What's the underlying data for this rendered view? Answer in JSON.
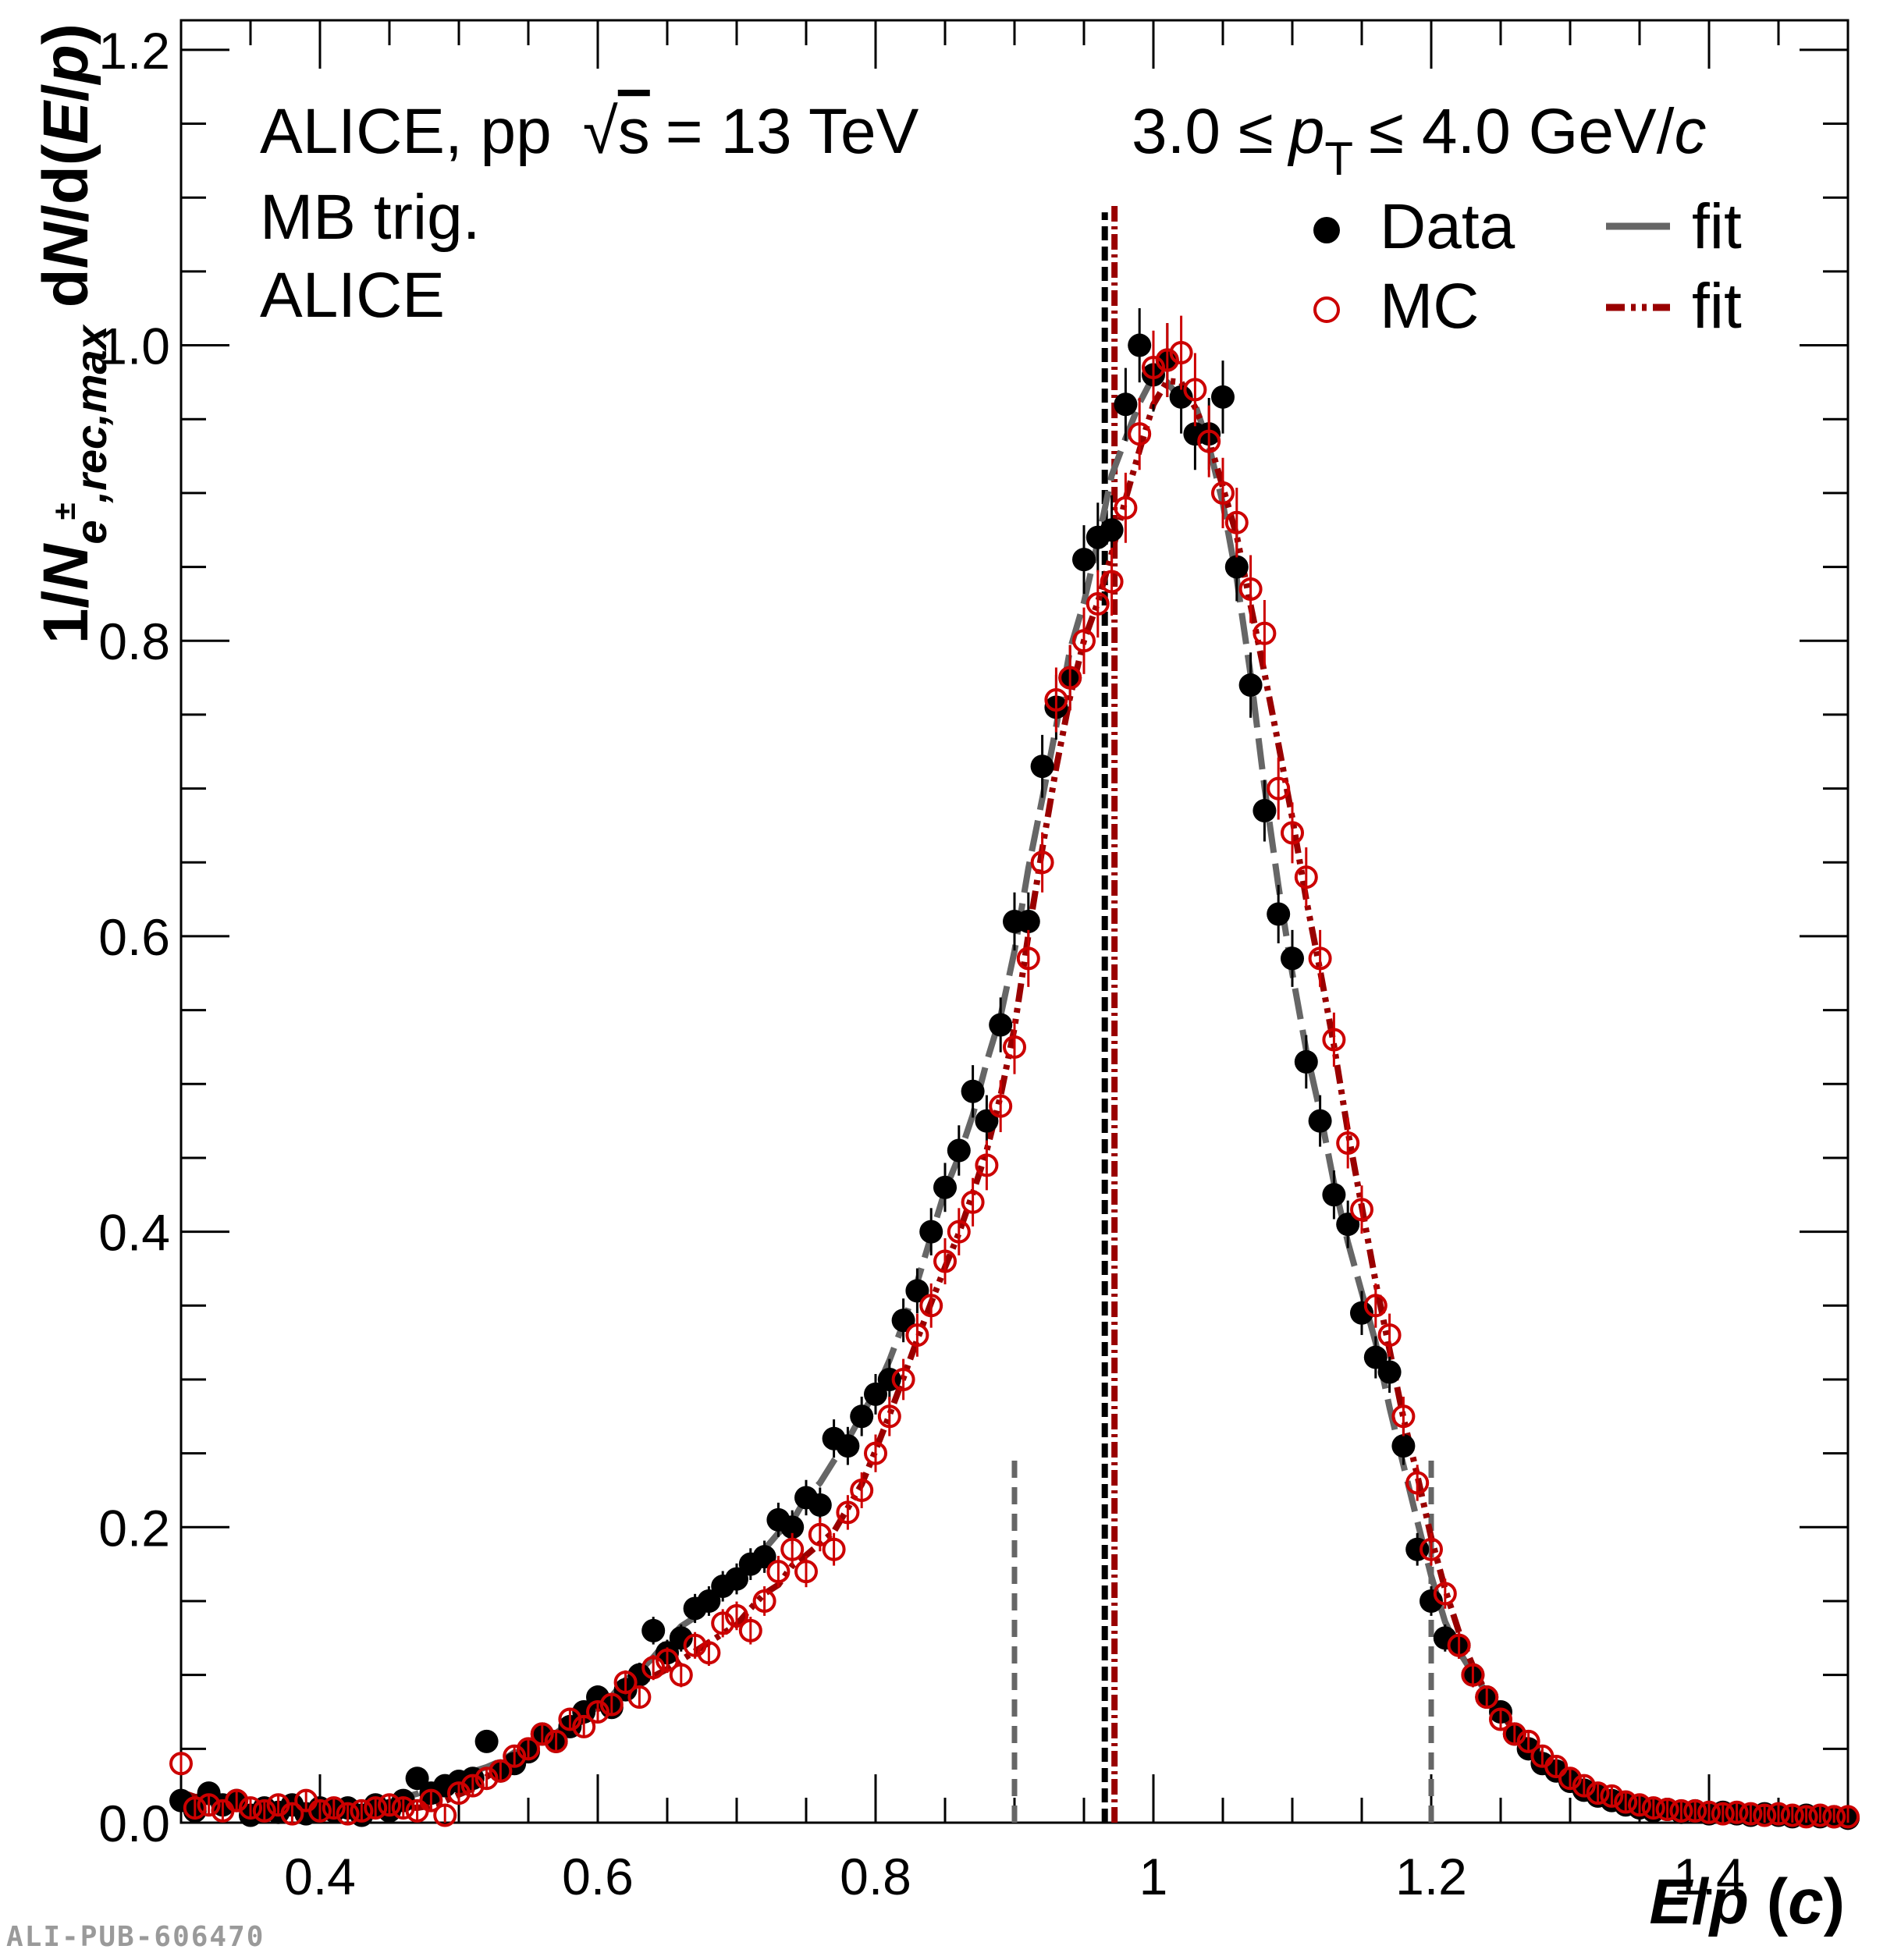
{
  "footer_id": "ALI-PUB-606470",
  "chart_data": {
    "type": "scatter",
    "title": "",
    "annotations": {
      "collab_pre": "ALICE, pp",
      "sqrt_sym": "√",
      "sqrt_s": "s",
      "energy": "= 13 TeV",
      "trigger": "MB trig.",
      "collab": "ALICE",
      "pt_left": "3.0 ≤",
      "pt_p": "p",
      "pt_T": "T",
      "pt_right": "≤ 4.0 GeV/",
      "pt_c": "c"
    },
    "xlabel": {
      "E": "E",
      "slash": "/",
      "p": "p",
      "open": " (",
      "c": "c",
      "close": ")"
    },
    "ylabel": {
      "pre": "1/",
      "N": "N",
      "sub": "e",
      "sup": "±",
      "sub2": ",rec,max",
      "mid": " d",
      "N2": "N",
      "mid2": "/d(",
      "E": "E",
      "slash": "/",
      "p": "p",
      "close": ")"
    },
    "xlim": [
      0.3,
      1.5
    ],
    "ylim": [
      0.0,
      1.22
    ],
    "x_ticks": [
      0.4,
      0.6,
      0.8,
      1.0,
      1.2,
      1.4
    ],
    "x_tick_labels": [
      "0.4",
      "0.6",
      "0.8",
      "1",
      "1.2",
      "1.4"
    ],
    "y_ticks": [
      0.0,
      0.2,
      0.4,
      0.6,
      0.8,
      1.0,
      1.2
    ],
    "y_tick_labels": [
      "0.0",
      "0.2",
      "0.4",
      "0.6",
      "0.8",
      "1.0",
      "1.2"
    ],
    "grid": false,
    "legend_position": "top-right",
    "legend": [
      {
        "label": "Data",
        "kind": "filled-marker"
      },
      {
        "label": "fit",
        "kind": "dashed-line"
      },
      {
        "label": "MC",
        "kind": "open-marker"
      },
      {
        "label": "fit",
        "kind": "dash-dot-line"
      }
    ],
    "colors": {
      "data": "#000000",
      "mc": "#cc0000",
      "data_fit": "#666666",
      "mc_fit": "#990000",
      "window": "#666666"
    },
    "peak_lines": [
      {
        "series": "Data",
        "x": 0.965,
        "y_top": 1.09
      },
      {
        "series": "MC",
        "x": 0.972,
        "y_top": 1.095
      }
    ],
    "window_lines": [
      {
        "x": 0.9,
        "y_top": 0.25
      },
      {
        "x": 1.2,
        "y_top": 0.25
      }
    ],
    "series": [
      {
        "name": "Data",
        "points": [
          [
            0.3,
            0.015
          ],
          [
            0.31,
            0.008
          ],
          [
            0.32,
            0.02
          ],
          [
            0.33,
            0.012
          ],
          [
            0.34,
            0.015
          ],
          [
            0.35,
            0.005
          ],
          [
            0.36,
            0.01
          ],
          [
            0.37,
            0.007
          ],
          [
            0.38,
            0.012
          ],
          [
            0.39,
            0.006
          ],
          [
            0.4,
            0.01
          ],
          [
            0.41,
            0.008
          ],
          [
            0.42,
            0.01
          ],
          [
            0.43,
            0.005
          ],
          [
            0.44,
            0.012
          ],
          [
            0.45,
            0.008
          ],
          [
            0.46,
            0.015
          ],
          [
            0.47,
            0.03
          ],
          [
            0.48,
            0.02
          ],
          [
            0.49,
            0.025
          ],
          [
            0.5,
            0.028
          ],
          [
            0.51,
            0.03
          ],
          [
            0.52,
            0.055
          ],
          [
            0.53,
            0.035
          ],
          [
            0.54,
            0.04
          ],
          [
            0.55,
            0.048
          ],
          [
            0.56,
            0.06
          ],
          [
            0.57,
            0.055
          ],
          [
            0.58,
            0.065
          ],
          [
            0.59,
            0.075
          ],
          [
            0.6,
            0.085
          ],
          [
            0.61,
            0.078
          ],
          [
            0.62,
            0.09
          ],
          [
            0.63,
            0.1
          ],
          [
            0.64,
            0.13
          ],
          [
            0.65,
            0.115
          ],
          [
            0.66,
            0.125
          ],
          [
            0.67,
            0.145
          ],
          [
            0.68,
            0.15
          ],
          [
            0.69,
            0.16
          ],
          [
            0.7,
            0.165
          ],
          [
            0.71,
            0.175
          ],
          [
            0.72,
            0.18
          ],
          [
            0.73,
            0.205
          ],
          [
            0.74,
            0.2
          ],
          [
            0.75,
            0.22
          ],
          [
            0.76,
            0.215
          ],
          [
            0.77,
            0.26
          ],
          [
            0.78,
            0.255
          ],
          [
            0.79,
            0.275
          ],
          [
            0.8,
            0.29
          ],
          [
            0.81,
            0.3
          ],
          [
            0.82,
            0.34
          ],
          [
            0.83,
            0.36
          ],
          [
            0.84,
            0.4
          ],
          [
            0.85,
            0.43
          ],
          [
            0.86,
            0.455
          ],
          [
            0.87,
            0.495
          ],
          [
            0.88,
            0.475
          ],
          [
            0.89,
            0.54
          ],
          [
            0.9,
            0.61
          ],
          [
            0.91,
            0.61
          ],
          [
            0.92,
            0.715
          ],
          [
            0.93,
            0.755
          ],
          [
            0.94,
            0.775
          ],
          [
            0.95,
            0.855
          ],
          [
            0.96,
            0.87
          ],
          [
            0.97,
            0.875
          ],
          [
            0.98,
            0.96
          ],
          [
            0.99,
            1.0
          ],
          [
            1.0,
            0.98
          ],
          [
            1.01,
            0.99
          ],
          [
            1.02,
            0.965
          ],
          [
            1.03,
            0.94
          ],
          [
            1.04,
            0.94
          ],
          [
            1.05,
            0.965
          ],
          [
            1.06,
            0.85
          ],
          [
            1.07,
            0.77
          ],
          [
            1.08,
            0.685
          ],
          [
            1.09,
            0.615
          ],
          [
            1.1,
            0.585
          ],
          [
            1.11,
            0.515
          ],
          [
            1.12,
            0.475
          ],
          [
            1.13,
            0.425
          ],
          [
            1.14,
            0.405
          ],
          [
            1.15,
            0.345
          ],
          [
            1.16,
            0.315
          ],
          [
            1.17,
            0.305
          ],
          [
            1.18,
            0.255
          ],
          [
            1.19,
            0.185
          ],
          [
            1.2,
            0.15
          ],
          [
            1.21,
            0.125
          ],
          [
            1.22,
            0.12
          ],
          [
            1.23,
            0.1
          ],
          [
            1.24,
            0.085
          ],
          [
            1.25,
            0.075
          ],
          [
            1.26,
            0.06
          ],
          [
            1.27,
            0.05
          ],
          [
            1.28,
            0.04
          ],
          [
            1.29,
            0.035
          ],
          [
            1.3,
            0.028
          ],
          [
            1.31,
            0.022
          ],
          [
            1.32,
            0.018
          ],
          [
            1.33,
            0.015
          ],
          [
            1.34,
            0.012
          ],
          [
            1.35,
            0.01
          ],
          [
            1.36,
            0.008
          ],
          [
            1.37,
            0.009
          ],
          [
            1.38,
            0.007
          ],
          [
            1.39,
            0.008
          ],
          [
            1.4,
            0.006
          ],
          [
            1.41,
            0.007
          ],
          [
            1.42,
            0.006
          ],
          [
            1.43,
            0.005
          ],
          [
            1.44,
            0.006
          ],
          [
            1.45,
            0.005
          ],
          [
            1.46,
            0.004
          ],
          [
            1.47,
            0.005
          ],
          [
            1.48,
            0.004
          ],
          [
            1.49,
            0.004
          ],
          [
            1.5,
            0.003
          ]
        ]
      },
      {
        "name": "MC",
        "points": [
          [
            0.3,
            0.04
          ],
          [
            0.31,
            0.01
          ],
          [
            0.32,
            0.012
          ],
          [
            0.33,
            0.008
          ],
          [
            0.34,
            0.015
          ],
          [
            0.35,
            0.01
          ],
          [
            0.36,
            0.008
          ],
          [
            0.37,
            0.012
          ],
          [
            0.38,
            0.006
          ],
          [
            0.39,
            0.015
          ],
          [
            0.4,
            0.008
          ],
          [
            0.41,
            0.01
          ],
          [
            0.42,
            0.006
          ],
          [
            0.43,
            0.008
          ],
          [
            0.44,
            0.01
          ],
          [
            0.45,
            0.012
          ],
          [
            0.46,
            0.01
          ],
          [
            0.47,
            0.008
          ],
          [
            0.48,
            0.015
          ],
          [
            0.49,
            0.005
          ],
          [
            0.5,
            0.02
          ],
          [
            0.51,
            0.025
          ],
          [
            0.52,
            0.03
          ],
          [
            0.53,
            0.035
          ],
          [
            0.54,
            0.045
          ],
          [
            0.55,
            0.05
          ],
          [
            0.56,
            0.06
          ],
          [
            0.57,
            0.055
          ],
          [
            0.58,
            0.07
          ],
          [
            0.59,
            0.065
          ],
          [
            0.6,
            0.075
          ],
          [
            0.61,
            0.08
          ],
          [
            0.62,
            0.095
          ],
          [
            0.63,
            0.085
          ],
          [
            0.64,
            0.105
          ],
          [
            0.65,
            0.11
          ],
          [
            0.66,
            0.1
          ],
          [
            0.67,
            0.12
          ],
          [
            0.68,
            0.115
          ],
          [
            0.69,
            0.135
          ],
          [
            0.7,
            0.14
          ],
          [
            0.71,
            0.13
          ],
          [
            0.72,
            0.15
          ],
          [
            0.73,
            0.17
          ],
          [
            0.74,
            0.185
          ],
          [
            0.75,
            0.17
          ],
          [
            0.76,
            0.195
          ],
          [
            0.77,
            0.185
          ],
          [
            0.78,
            0.21
          ],
          [
            0.79,
            0.225
          ],
          [
            0.8,
            0.25
          ],
          [
            0.81,
            0.275
          ],
          [
            0.82,
            0.3
          ],
          [
            0.83,
            0.33
          ],
          [
            0.84,
            0.35
          ],
          [
            0.85,
            0.38
          ],
          [
            0.86,
            0.4
          ],
          [
            0.87,
            0.42
          ],
          [
            0.88,
            0.445
          ],
          [
            0.89,
            0.485
          ],
          [
            0.9,
            0.525
          ],
          [
            0.91,
            0.585
          ],
          [
            0.92,
            0.65
          ],
          [
            0.93,
            0.76
          ],
          [
            0.94,
            0.775
          ],
          [
            0.95,
            0.8
          ],
          [
            0.96,
            0.825
          ],
          [
            0.97,
            0.84
          ],
          [
            0.98,
            0.89
          ],
          [
            0.99,
            0.94
          ],
          [
            1.0,
            0.985
          ],
          [
            1.01,
            0.99
          ],
          [
            1.02,
            0.995
          ],
          [
            1.03,
            0.97
          ],
          [
            1.04,
            0.935
          ],
          [
            1.05,
            0.9
          ],
          [
            1.06,
            0.88
          ],
          [
            1.07,
            0.835
          ],
          [
            1.08,
            0.805
          ],
          [
            1.09,
            0.7
          ],
          [
            1.1,
            0.67
          ],
          [
            1.11,
            0.64
          ],
          [
            1.12,
            0.585
          ],
          [
            1.13,
            0.53
          ],
          [
            1.14,
            0.46
          ],
          [
            1.15,
            0.415
          ],
          [
            1.16,
            0.35
          ],
          [
            1.17,
            0.33
          ],
          [
            1.18,
            0.275
          ],
          [
            1.19,
            0.23
          ],
          [
            1.2,
            0.185
          ],
          [
            1.21,
            0.155
          ],
          [
            1.22,
            0.12
          ],
          [
            1.23,
            0.1
          ],
          [
            1.24,
            0.085
          ],
          [
            1.25,
            0.07
          ],
          [
            1.26,
            0.06
          ],
          [
            1.27,
            0.055
          ],
          [
            1.28,
            0.045
          ],
          [
            1.29,
            0.038
          ],
          [
            1.3,
            0.03
          ],
          [
            1.31,
            0.025
          ],
          [
            1.32,
            0.02
          ],
          [
            1.33,
            0.018
          ],
          [
            1.34,
            0.014
          ],
          [
            1.35,
            0.012
          ],
          [
            1.36,
            0.01
          ],
          [
            1.37,
            0.009
          ],
          [
            1.38,
            0.008
          ],
          [
            1.39,
            0.008
          ],
          [
            1.4,
            0.007
          ],
          [
            1.41,
            0.006
          ],
          [
            1.42,
            0.007
          ],
          [
            1.43,
            0.006
          ],
          [
            1.44,
            0.005
          ],
          [
            1.45,
            0.006
          ],
          [
            1.46,
            0.005
          ],
          [
            1.47,
            0.004
          ],
          [
            1.48,
            0.005
          ],
          [
            1.49,
            0.004
          ],
          [
            1.5,
            0.004
          ]
        ]
      }
    ]
  }
}
